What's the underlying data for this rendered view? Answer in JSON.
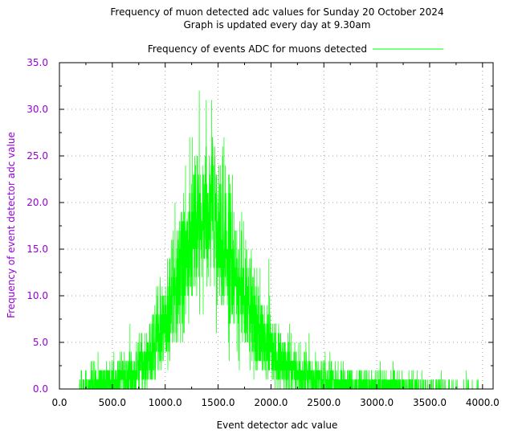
{
  "chart_data": {
    "type": "line",
    "title": "Frequency of muon detected adc values for Sunday 20 October 2024",
    "subtitle": "Graph is updated every day at 9.30am",
    "xlabel": "Event detector adc value",
    "ylabel": "Frequency of event detector adc value",
    "xlim": [
      0,
      4100
    ],
    "ylim": [
      0,
      35
    ],
    "x_ticks": [
      "0.0",
      "500.0",
      "1000.0",
      "1500.0",
      "2000.0",
      "2500.0",
      "3000.0",
      "3500.0",
      "4000.0"
    ],
    "y_ticks": [
      "0.0",
      "5.0",
      "10.0",
      "15.0",
      "20.0",
      "25.0",
      "30.0",
      "35.0"
    ],
    "grid": true,
    "legend_position": "top",
    "series": [
      {
        "name": "Frequency of events ADC for muons detected",
        "color": "#00ff00",
        "x_range": [
          160,
          3960
        ],
        "profile": [
          {
            "x": 160,
            "y": 0
          },
          {
            "x": 300,
            "y": 0.6
          },
          {
            "x": 500,
            "y": 0.9
          },
          {
            "x": 700,
            "y": 1.6
          },
          {
            "x": 850,
            "y": 3.5
          },
          {
            "x": 1000,
            "y": 7.5
          },
          {
            "x": 1150,
            "y": 13
          },
          {
            "x": 1300,
            "y": 18
          },
          {
            "x": 1400,
            "y": 19.5
          },
          {
            "x": 1500,
            "y": 17.5
          },
          {
            "x": 1600,
            "y": 14
          },
          {
            "x": 1750,
            "y": 10
          },
          {
            "x": 1900,
            "y": 6
          },
          {
            "x": 2050,
            "y": 3.5
          },
          {
            "x": 2250,
            "y": 1.8
          },
          {
            "x": 2500,
            "y": 0.9
          },
          {
            "x": 2800,
            "y": 0.5
          },
          {
            "x": 3200,
            "y": 0.3
          },
          {
            "x": 3600,
            "y": 0.15
          },
          {
            "x": 3960,
            "y": 0.05
          }
        ],
        "peak": {
          "x": 1440,
          "y": 31
        }
      }
    ],
    "colors": {
      "y_axis_text": "#9400d3",
      "axis": "#000000",
      "grid": "#a0a0a0"
    }
  }
}
